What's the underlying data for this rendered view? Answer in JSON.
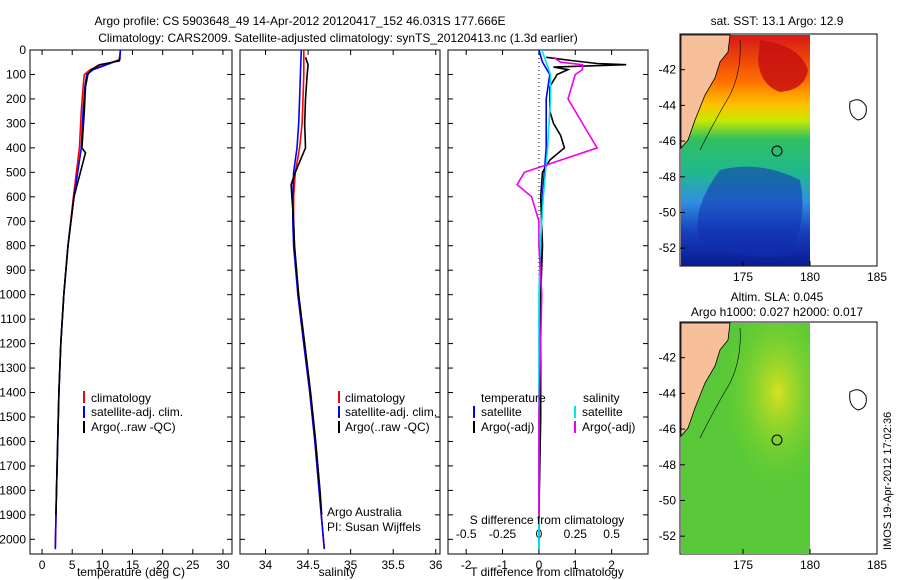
{
  "title_line1": "Argo profile: CS 5903648_49 14-Apr-2012 20120417_152 46.031S 177.666E",
  "title_line2": "Climatology: CARS2009. Satellite-adjusted climatology: synTS_20120413.nc (1.3d earlier)",
  "chart_data": [
    {
      "type": "line",
      "xlabel": "temperature (deg C)",
      "ylabel": "",
      "xlim": [
        -2,
        31.5
      ],
      "ylim": [
        2060,
        0
      ],
      "xticks": [
        0,
        5,
        10,
        15,
        20,
        25,
        30
      ],
      "yticks": [
        0,
        100,
        200,
        300,
        400,
        500,
        600,
        700,
        800,
        900,
        1000,
        1100,
        1200,
        1300,
        1400,
        1500,
        1600,
        1700,
        1800,
        1900,
        2000
      ],
      "legend": [
        "climatology",
        "satellite-adj. clim.",
        "Argo(..raw -QC)"
      ],
      "colors": [
        "#ff0000",
        "#0000ff",
        "#000000"
      ],
      "series": [
        {
          "name": "climatology",
          "depth": [
            0,
            40,
            80,
            100,
            150,
            250,
            400,
            600,
            800,
            1000,
            1200,
            1400,
            1600,
            1800,
            2040
          ],
          "values": [
            13.0,
            12.8,
            8.0,
            7.0,
            6.8,
            6.5,
            6.2,
            5.2,
            4.3,
            3.6,
            3.1,
            2.8,
            2.6,
            2.4,
            2.2
          ]
        },
        {
          "name": "satellite-adj. clim.",
          "depth": [
            0,
            40,
            80,
            100,
            150,
            250,
            400,
            600,
            800,
            1000,
            1200,
            1400,
            1600,
            1800,
            2040
          ],
          "values": [
            13.0,
            12.9,
            8.5,
            7.4,
            7.1,
            6.8,
            6.5,
            5.3,
            4.3,
            3.6,
            3.1,
            2.8,
            2.6,
            2.4,
            2.2
          ]
        },
        {
          "name": "Argo(..raw -QC)",
          "depth": [
            30,
            45,
            60,
            80,
            100,
            150,
            250,
            400,
            420,
            600,
            800,
            1000,
            1200,
            1400,
            1600,
            1800,
            1900
          ],
          "values": [
            12.9,
            12.8,
            9.5,
            8.2,
            7.6,
            7.2,
            7.0,
            6.6,
            7.2,
            5.3,
            4.3,
            3.6,
            3.1,
            2.8,
            2.6,
            2.4,
            2.3
          ]
        }
      ]
    },
    {
      "type": "line",
      "xlabel": "salinity",
      "ylabel": "",
      "xlim": [
        33.7,
        36.05
      ],
      "ylim": [
        2060,
        0
      ],
      "xticks": [
        34,
        34.5,
        35,
        35.5,
        36
      ],
      "legend": [
        "climatology",
        "satellite-adj. clim.",
        "Argo(..raw -QC)"
      ],
      "colors": [
        "#ff0000",
        "#0000ff",
        "#000000"
      ],
      "annotation": [
        "Argo Australia",
        "PI: Susan Wijffels"
      ],
      "series": [
        {
          "name": "climatology",
          "depth": [
            0,
            100,
            200,
            300,
            400,
            500,
            600,
            700,
            800,
            1000,
            1200,
            1400,
            1600,
            1800,
            2040
          ],
          "values": [
            34.45,
            34.45,
            34.44,
            34.43,
            34.4,
            34.35,
            34.33,
            34.33,
            34.34,
            34.38,
            34.45,
            34.52,
            34.58,
            34.63,
            34.69
          ]
        },
        {
          "name": "satellite-adj. clim.",
          "depth": [
            0,
            100,
            200,
            300,
            400,
            500,
            600,
            700,
            800,
            1000,
            1200,
            1400,
            1600,
            1800,
            2040
          ],
          "values": [
            34.42,
            34.41,
            34.4,
            34.39,
            34.37,
            34.33,
            34.32,
            34.32,
            34.33,
            34.38,
            34.45,
            34.52,
            34.58,
            34.63,
            34.69
          ]
        },
        {
          "name": "Argo(..raw -QC)",
          "depth": [
            30,
            60,
            100,
            200,
            300,
            400,
            450,
            500,
            550,
            600,
            700,
            800,
            1000,
            1200,
            1400,
            1600,
            1800,
            1900
          ],
          "values": [
            34.47,
            34.5,
            34.49,
            34.47,
            34.46,
            34.47,
            34.41,
            34.35,
            34.3,
            34.31,
            34.33,
            34.34,
            34.39,
            34.46,
            34.53,
            34.59,
            34.64,
            34.66
          ]
        }
      ]
    },
    {
      "type": "line",
      "xlabel": "T difference from climatology",
      "x2label": "S difference from climatology",
      "xlim": [
        -2.5,
        3.0
      ],
      "ylim": [
        2060,
        0
      ],
      "xticks": [
        -2,
        -1,
        0,
        1,
        2
      ],
      "x2ticks": [
        "-0.5",
        "-0.25",
        "0",
        "0.25",
        "0.5"
      ],
      "legend_left_header": "temperature",
      "legend_right_header": "salinity",
      "legend": [
        "satellite",
        "Argo(-adj)",
        "satellite",
        "Argo(-adj)"
      ],
      "colors": [
        "#0000ff",
        "#000000",
        "#00e5ee",
        "#ee00ee"
      ],
      "series": [
        {
          "name": "satellite T",
          "depth": [
            0,
            50,
            100,
            200,
            400,
            600,
            800,
            1000,
            1500,
            2040
          ],
          "values": [
            0.0,
            0.1,
            0.3,
            0.2,
            0.2,
            0.1,
            0.05,
            0.05,
            0.02,
            0.0
          ]
        },
        {
          "name": "Argo T",
          "depth": [
            30,
            45,
            55,
            60,
            70,
            80,
            100,
            150,
            250,
            300,
            350,
            400,
            450,
            500,
            600,
            800,
            1000,
            1500,
            1900
          ],
          "values": [
            0.2,
            1.0,
            1.6,
            2.4,
            0.4,
            0.8,
            0.5,
            0.3,
            0.3,
            0.4,
            0.6,
            0.7,
            0.3,
            0.1,
            0.05,
            0.1,
            0.05,
            0.05,
            0.0
          ]
        },
        {
          "name": "satellite S",
          "depth": [
            0,
            50,
            100,
            200,
            400,
            600,
            800,
            1000,
            1500,
            2040
          ],
          "values": [
            0.02,
            0.05,
            0.08,
            0.08,
            0.06,
            0.03,
            0.01,
            0.0,
            0.0,
            0.0
          ]
        },
        {
          "name": "Argo S",
          "depth": [
            30,
            50,
            60,
            80,
            100,
            200,
            300,
            400,
            450,
            500,
            550,
            600,
            700,
            800,
            1000,
            1500,
            1900
          ],
          "values": [
            0.1,
            0.15,
            0.3,
            0.3,
            0.25,
            0.2,
            0.3,
            0.4,
            0.15,
            -0.1,
            -0.15,
            -0.05,
            0.0,
            0.0,
            0.02,
            0.0,
            0.0
          ]
        }
      ]
    }
  ],
  "map_sst": {
    "title": "sat. SST: 13.1  Argo: 12.9",
    "xticks": [
      "175",
      "180",
      "185"
    ],
    "yticks": [
      "-42",
      "-44",
      "-46",
      "-48",
      "-50",
      "-52"
    ]
  },
  "map_sla": {
    "title_line1": "Altim. SLA: 0.045",
    "title_line2": "Argo h1000: 0.027 h2000: 0.017",
    "xticks": [
      "175",
      "180",
      "185"
    ],
    "yticks": [
      "-42",
      "-44",
      "-46",
      "-48",
      "-50",
      "-52"
    ]
  },
  "side_stamp": "IMOS 19-Apr-2012 17:02:36"
}
